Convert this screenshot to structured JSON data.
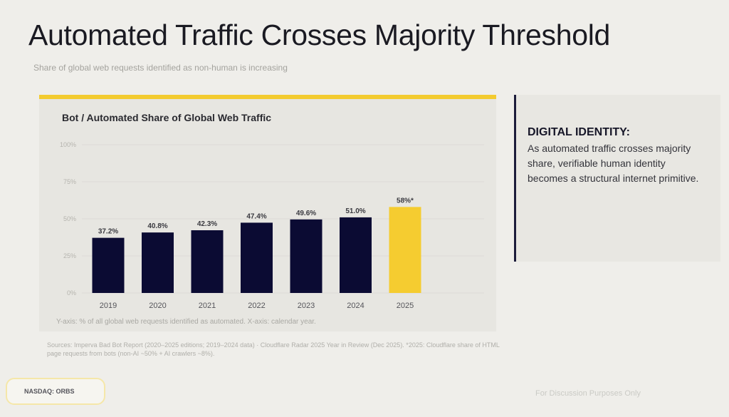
{
  "header": {
    "title": "Automated Traffic Crosses Majority Threshold",
    "subtitle": "Share of global web requests identified as non-human is increasing"
  },
  "chart_data": {
    "type": "bar",
    "title": "Bot / Automated Share of Global Web Traffic",
    "categories": [
      "2019",
      "2020",
      "2021",
      "2022",
      "2023",
      "2024",
      "2025"
    ],
    "values": [
      37.2,
      40.8,
      42.3,
      47.4,
      49.6,
      51.0,
      58
    ],
    "data_labels": [
      "37.2%",
      "40.8%",
      "42.3%",
      "47.4%",
      "49.6%",
      "51.0%",
      "58%*"
    ],
    "colors": [
      "#0b0b33",
      "#0b0b33",
      "#0b0b33",
      "#0b0b33",
      "#0b0b33",
      "#0b0b33",
      "#f5cc30"
    ],
    "ylim": [
      0,
      100
    ],
    "yticks": [
      "0%",
      "25%",
      "50%",
      "75%",
      "100%"
    ],
    "grid": true,
    "axis_note": "Y-axis: % of all global web requests identified as automated. X-axis: calendar year."
  },
  "sources": "Sources: Imperva Bad Bot Report (2020–2025 editions; 2019–2024 data) · Cloudflare Radar 2025 Year in Review (Dec 2025). *2025: Cloudflare share of HTML page requests from bots (non-AI ~50% + AI crawlers ~8%).",
  "side": {
    "heading": "DIGITAL IDENTITY:",
    "body": "As automated traffic crosses majority share, verifiable human identity becomes a structural internet primitive."
  },
  "footer": {
    "badge": "NASDAQ: ORBS",
    "disclaimer": "For Discussion Purposes Only"
  }
}
